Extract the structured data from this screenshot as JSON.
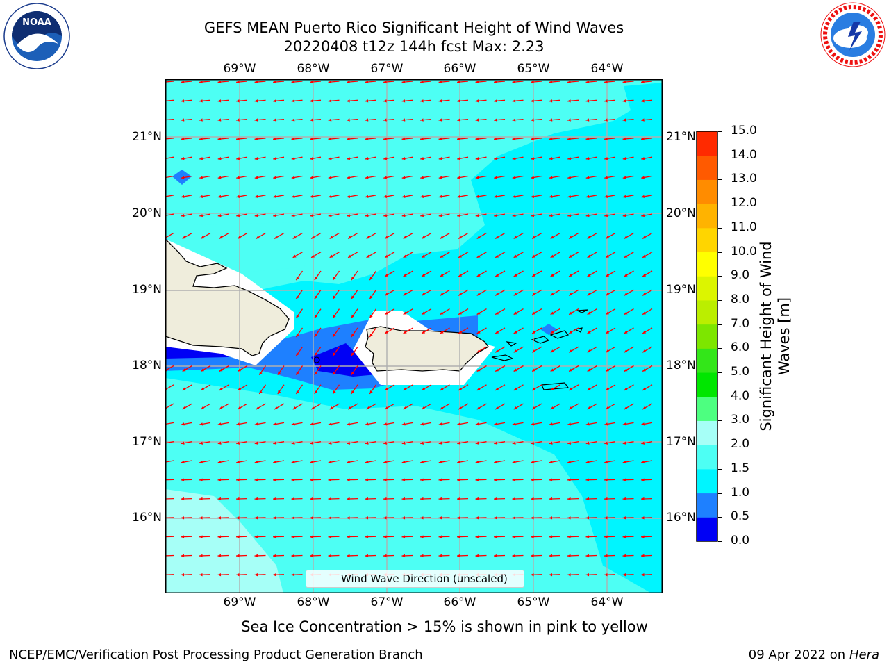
{
  "title_line1": "GEFS MEAN Puerto Rico Significant Height of Wind Waves",
  "title_line2": "20220408 t12z 144h fcst   Max: 2.23",
  "lon_labels": [
    "69°W",
    "68°W",
    "67°W",
    "66°W",
    "65°W",
    "64°W"
  ],
  "lat_labels": [
    "21°N",
    "20°N",
    "19°N",
    "18°N",
    "17°N",
    "16°N"
  ],
  "colorbar": {
    "label_line1": "Significant Height of Wind",
    "label_line2": "Waves [m]",
    "ticks": [
      "0.0",
      "0.5",
      "1.0",
      "1.5",
      "2.0",
      "3.0",
      "4.0",
      "5.0",
      "6.0",
      "7.0",
      "8.0",
      "9.0",
      "10.0",
      "11.0",
      "12.0",
      "13.0",
      "14.0",
      "15.0"
    ],
    "colors": [
      "#0000f5",
      "#1e80ff",
      "#00f5ff",
      "#4dfff4",
      "#a6fff7",
      "#4dff80",
      "#00e600",
      "#33e619",
      "#7de600",
      "#bbee00",
      "#dcf500",
      "#ffff00",
      "#ffd500",
      "#ffb300",
      "#ff8c00",
      "#ff5a00",
      "#ff2a00",
      "#ff0000"
    ]
  },
  "legend_label": "Wind Wave Direction (unscaled)",
  "subtitle": "Sea Ice Concentration > 15% is shown in pink to yellow",
  "footer_left": "NCEP/EMC/Verification Post Processing Product Generation Branch",
  "footer_date": "09 Apr 2022 on ",
  "footer_host": "Hera",
  "logos": {
    "left": "NOAA",
    "right": "NATIONAL WEATHER SERVICE"
  },
  "colors": {
    "arrow": "#ff0000",
    "land": "#efeddc"
  }
}
